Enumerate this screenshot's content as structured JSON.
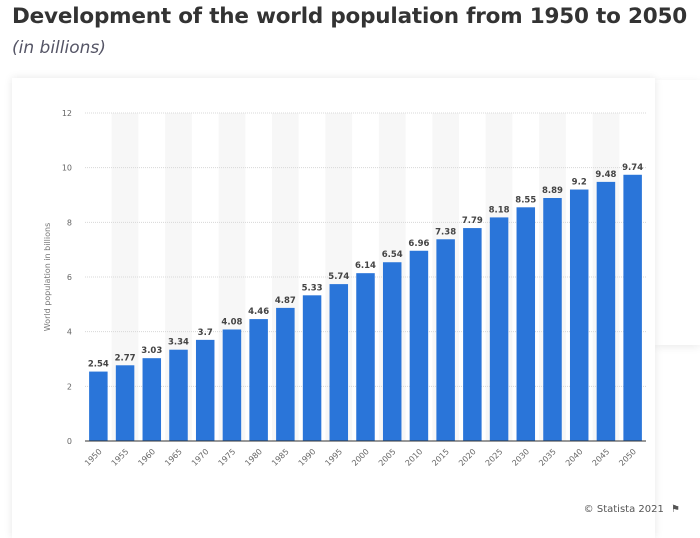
{
  "title": "Development of the world population from 1950 to 2050",
  "subtitle": "(in billions)",
  "credit": "© Statista 2021",
  "credit_icon": "flag-icon",
  "chart_data": {
    "type": "bar",
    "ylabel": "World population in billions",
    "xlabel": "",
    "ylim": [
      0,
      12
    ],
    "yticks": [
      0,
      2,
      4,
      6,
      8,
      10,
      12
    ],
    "grid": true,
    "bar_color": "#2a75d9",
    "categories": [
      "1950",
      "1955",
      "1960",
      "1965",
      "1970",
      "1975",
      "1980",
      "1985",
      "1990",
      "1995",
      "2000",
      "2005",
      "2010",
      "2015",
      "2020",
      "2025",
      "2030",
      "2035",
      "2040",
      "2045",
      "2050"
    ],
    "values": [
      2.54,
      2.77,
      3.03,
      3.34,
      3.7,
      4.08,
      4.46,
      4.87,
      5.33,
      5.74,
      6.14,
      6.54,
      6.96,
      7.38,
      7.79,
      8.18,
      8.55,
      8.89,
      9.2,
      9.48,
      9.74
    ]
  }
}
